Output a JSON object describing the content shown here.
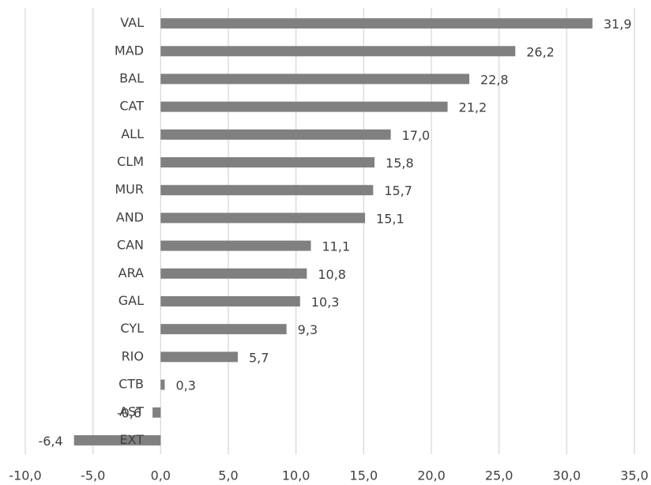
{
  "chart_data": {
    "type": "barh",
    "categories": [
      "VAL",
      "MAD",
      "BAL",
      "CAT",
      "ALL",
      "CLM",
      "MUR",
      "AND",
      "CAN",
      "ARA",
      "GAL",
      "CYL",
      "RIO",
      "CTB",
      "AST",
      "EXT"
    ],
    "values": [
      31.9,
      26.2,
      22.8,
      21.2,
      17.0,
      15.8,
      15.7,
      15.1,
      11.1,
      10.8,
      10.3,
      9.3,
      5.7,
      0.3,
      -0.6,
      -6.4
    ],
    "value_labels": [
      "31,9",
      "26,2",
      "22,8",
      "21,2",
      "17,0",
      "15,8",
      "15,7",
      "15,1",
      "11,1",
      "10,8",
      "10,3",
      "9,3",
      "5,7",
      "0,3",
      "-0,6",
      "-6,4"
    ],
    "color": "#808080",
    "xlim": [
      -10,
      35
    ],
    "xticks": [
      {
        "value": -10,
        "label": "-10,0"
      },
      {
        "value": -5,
        "label": "-5,0"
      },
      {
        "value": 0,
        "label": "0,0"
      },
      {
        "value": 5,
        "label": "5,0"
      },
      {
        "value": 10,
        "label": "10,0"
      },
      {
        "value": 15,
        "label": "15,0"
      },
      {
        "value": 20,
        "label": "20,0"
      },
      {
        "value": 25,
        "label": "25,0"
      },
      {
        "value": 30,
        "label": "30,0"
      },
      {
        "value": 35,
        "label": "35,0"
      }
    ],
    "grid": true
  }
}
